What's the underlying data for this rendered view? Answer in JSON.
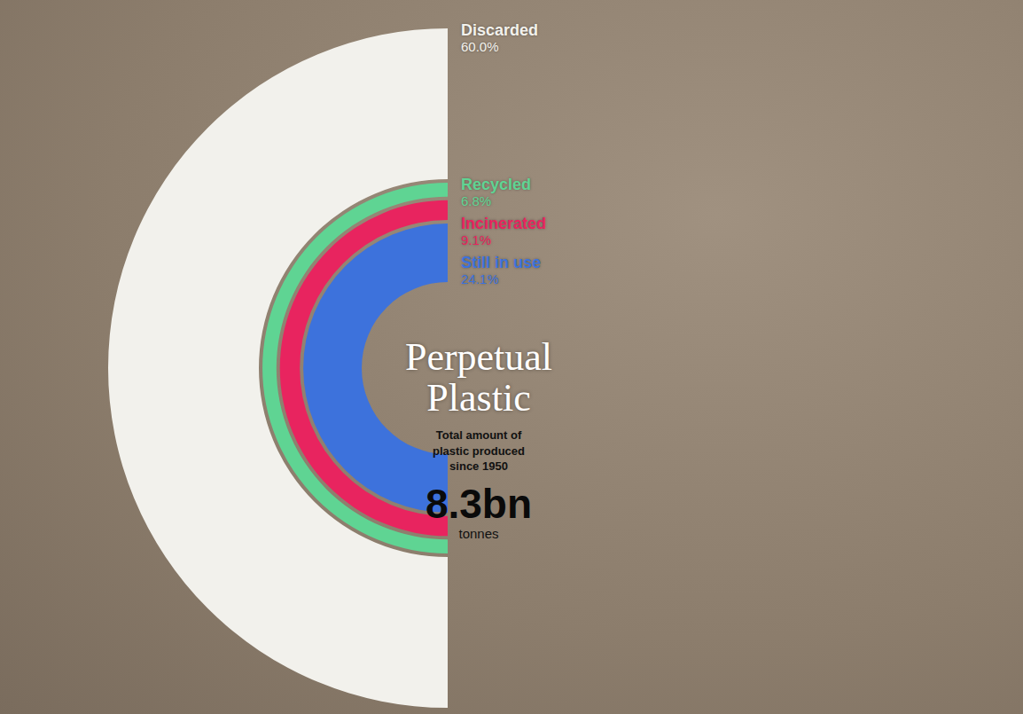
{
  "chart_data": {
    "type": "semicircle_rings",
    "title": "Perpetual Plastic",
    "subtitle": "Total amount of plastic produced since 1950",
    "annotations": [
      "8.3bn",
      "tonnes"
    ],
    "categories": [
      "Discarded",
      "Recycled",
      "Incinerated",
      "Still in use"
    ],
    "values": [
      60.0,
      6.8,
      9.1,
      24.1
    ],
    "value_labels": [
      "60.0%",
      "6.8%",
      "9.1%",
      "24.1%"
    ],
    "colors": [
      "#f2f1ec",
      "#5fd493",
      "#e8245f",
      "#3d72dc"
    ],
    "data_labels": true
  }
}
